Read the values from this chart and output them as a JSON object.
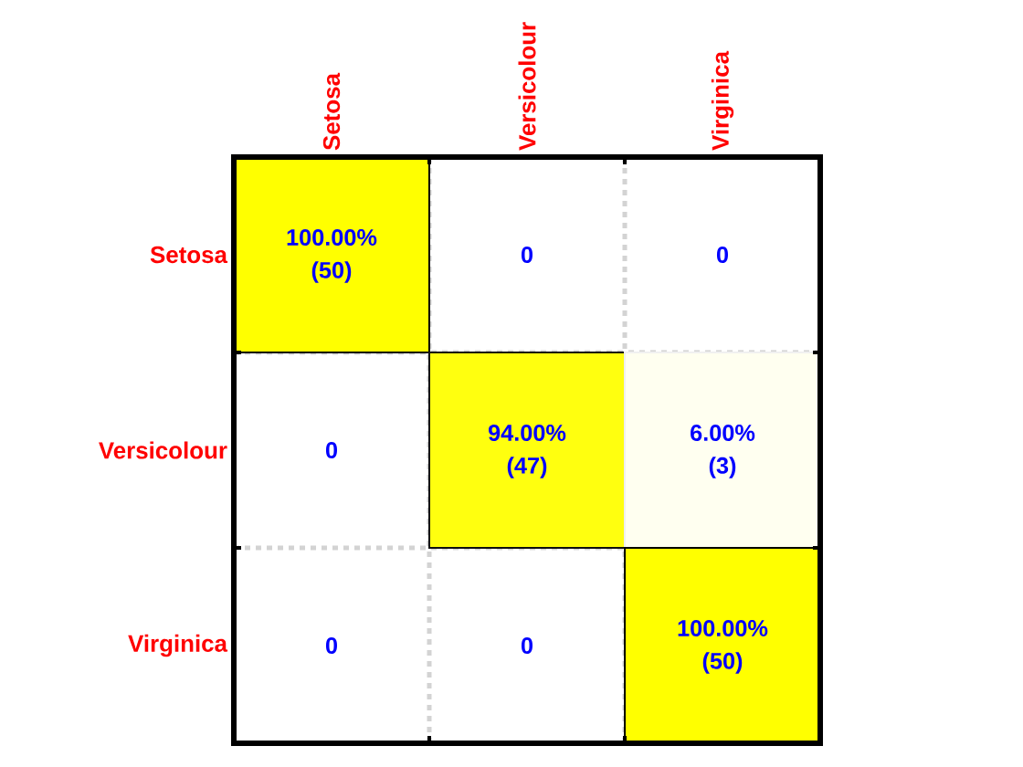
{
  "chart_data": {
    "type": "heatmap",
    "categories": [
      "Setosa",
      "Versicolour",
      "Virginica"
    ],
    "y_categories": [
      "Setosa",
      "Versicolour",
      "Virginica"
    ],
    "cells": [
      [
        100,
        0,
        0
      ],
      [
        0,
        94,
        6
      ],
      [
        0,
        0,
        100
      ]
    ],
    "cell_labels": [
      [
        "100.00%",
        "0",
        "0"
      ],
      [
        "0",
        "94.00%",
        "6.00%"
      ],
      [
        "0",
        "0",
        "100.00%"
      ]
    ],
    "annotations": [
      "(50)",
      "(47)",
      "(3)",
      "(50)"
    ],
    "grid": true
  }
}
